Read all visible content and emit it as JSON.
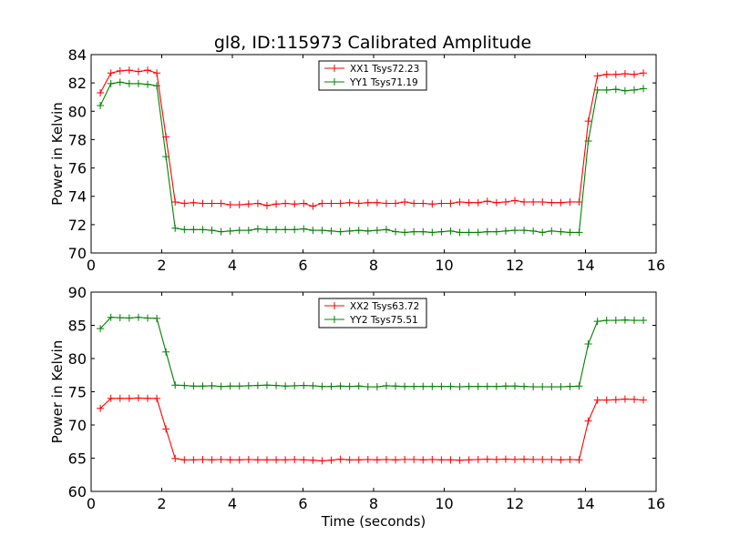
{
  "figure": {
    "title": "gl8, ID:115973 Calibrated Amplitude"
  },
  "chart_data": [
    {
      "type": "line",
      "title": "gl8, ID:115973 Calibrated Amplitude",
      "xlabel": "",
      "ylabel": "Power in Kelvin",
      "xlim": [
        0,
        16
      ],
      "ylim": [
        70,
        84
      ],
      "xticks": [
        "0",
        "2",
        "4",
        "6",
        "8",
        "10",
        "12",
        "14",
        "16"
      ],
      "yticks": [
        "70",
        "72",
        "74",
        "76",
        "78",
        "80",
        "82",
        "84"
      ],
      "grid": false,
      "legend_position": "top-center",
      "x": [
        0.26,
        0.56,
        0.82,
        1.08,
        1.34,
        1.6,
        1.86,
        2.12,
        2.38,
        2.64,
        2.9,
        3.16,
        3.42,
        3.68,
        3.94,
        4.2,
        4.46,
        4.72,
        4.98,
        5.24,
        5.5,
        5.76,
        6.02,
        6.28,
        6.54,
        6.8,
        7.06,
        7.32,
        7.58,
        7.84,
        8.1,
        8.36,
        8.62,
        8.88,
        9.14,
        9.4,
        9.66,
        9.92,
        10.18,
        10.44,
        10.7,
        10.96,
        11.22,
        11.48,
        11.74,
        12.0,
        12.26,
        12.52,
        12.78,
        13.04,
        13.3,
        13.56,
        13.82,
        14.08,
        14.34,
        14.6,
        14.86,
        15.12,
        15.38,
        15.64
      ],
      "series": [
        {
          "name": "XX1 Tsys72.23",
          "color": "#ff0000",
          "values": [
            81.3,
            82.7,
            82.85,
            82.9,
            82.8,
            82.9,
            82.7,
            78.2,
            73.6,
            73.5,
            73.55,
            73.5,
            73.5,
            73.5,
            73.4,
            73.4,
            73.45,
            73.5,
            73.35,
            73.45,
            73.5,
            73.45,
            73.5,
            73.3,
            73.5,
            73.5,
            73.5,
            73.55,
            73.5,
            73.55,
            73.55,
            73.5,
            73.5,
            73.6,
            73.5,
            73.5,
            73.45,
            73.5,
            73.5,
            73.6,
            73.55,
            73.55,
            73.65,
            73.55,
            73.6,
            73.7,
            73.6,
            73.6,
            73.6,
            73.55,
            73.55,
            73.6,
            73.6,
            79.3,
            82.5,
            82.6,
            82.6,
            82.65,
            82.6,
            82.7
          ]
        },
        {
          "name": "YY1 Tsys71.19",
          "color": "#008000",
          "values": [
            80.4,
            81.95,
            82.05,
            81.95,
            81.95,
            81.9,
            81.8,
            76.8,
            71.75,
            71.65,
            71.65,
            71.65,
            71.6,
            71.5,
            71.55,
            71.6,
            71.6,
            71.7,
            71.65,
            71.65,
            71.65,
            71.65,
            71.7,
            71.6,
            71.6,
            71.55,
            71.5,
            71.55,
            71.6,
            71.55,
            71.6,
            71.65,
            71.5,
            71.45,
            71.5,
            71.5,
            71.45,
            71.5,
            71.55,
            71.45,
            71.45,
            71.45,
            71.5,
            71.5,
            71.55,
            71.6,
            71.6,
            71.55,
            71.45,
            71.55,
            71.5,
            71.45,
            71.45,
            77.9,
            81.5,
            81.5,
            81.55,
            81.45,
            81.5,
            81.6
          ]
        }
      ]
    },
    {
      "type": "line",
      "title": "",
      "xlabel": "Time (seconds)",
      "ylabel": "Power in Kelvin",
      "xlim": [
        0,
        16
      ],
      "ylim": [
        60,
        90
      ],
      "xticks": [
        "0",
        "2",
        "4",
        "6",
        "8",
        "10",
        "12",
        "14",
        "16"
      ],
      "yticks": [
        "60",
        "65",
        "70",
        "75",
        "80",
        "85",
        "90"
      ],
      "grid": false,
      "legend_position": "top-center",
      "x": [
        0.26,
        0.56,
        0.82,
        1.08,
        1.34,
        1.6,
        1.86,
        2.12,
        2.38,
        2.64,
        2.9,
        3.16,
        3.42,
        3.68,
        3.94,
        4.2,
        4.46,
        4.72,
        4.98,
        5.24,
        5.5,
        5.76,
        6.02,
        6.28,
        6.54,
        6.8,
        7.06,
        7.32,
        7.58,
        7.84,
        8.1,
        8.36,
        8.62,
        8.88,
        9.14,
        9.4,
        9.66,
        9.92,
        10.18,
        10.44,
        10.7,
        10.96,
        11.22,
        11.48,
        11.74,
        12.0,
        12.26,
        12.52,
        12.78,
        13.04,
        13.3,
        13.56,
        13.82,
        14.08,
        14.34,
        14.6,
        14.86,
        15.12,
        15.38,
        15.64
      ],
      "series": [
        {
          "name": "XX2 Tsys63.72",
          "color": "#ff0000",
          "values": [
            72.5,
            74.0,
            74.0,
            74.0,
            74.05,
            74.0,
            74.0,
            69.4,
            64.95,
            64.75,
            64.75,
            64.8,
            64.75,
            64.8,
            64.75,
            64.75,
            64.8,
            64.75,
            64.75,
            64.75,
            64.75,
            64.8,
            64.75,
            64.7,
            64.6,
            64.7,
            64.85,
            64.75,
            64.75,
            64.8,
            64.75,
            64.8,
            64.75,
            64.8,
            64.8,
            64.75,
            64.8,
            64.75,
            64.75,
            64.7,
            64.75,
            64.8,
            64.85,
            64.8,
            64.85,
            64.8,
            64.85,
            64.8,
            64.8,
            64.8,
            64.75,
            64.8,
            64.75,
            70.6,
            73.75,
            73.75,
            73.8,
            73.9,
            73.85,
            73.75
          ]
        },
        {
          "name": "YY2 Tsys75.51",
          "color": "#008000",
          "values": [
            84.5,
            86.2,
            86.15,
            86.1,
            86.2,
            86.1,
            86.05,
            81.0,
            76.0,
            75.95,
            75.85,
            75.85,
            75.9,
            75.8,
            75.85,
            75.85,
            75.9,
            75.95,
            76.0,
            75.95,
            75.85,
            75.9,
            75.95,
            75.9,
            75.8,
            75.8,
            75.85,
            75.8,
            75.85,
            75.75,
            75.75,
            75.9,
            75.85,
            75.8,
            75.8,
            75.8,
            75.8,
            75.8,
            75.8,
            75.75,
            75.8,
            75.8,
            75.8,
            75.8,
            75.85,
            75.85,
            75.8,
            75.75,
            75.75,
            75.75,
            75.75,
            75.8,
            75.85,
            82.2,
            85.6,
            85.75,
            85.75,
            85.8,
            85.75,
            85.75
          ]
        }
      ]
    }
  ]
}
